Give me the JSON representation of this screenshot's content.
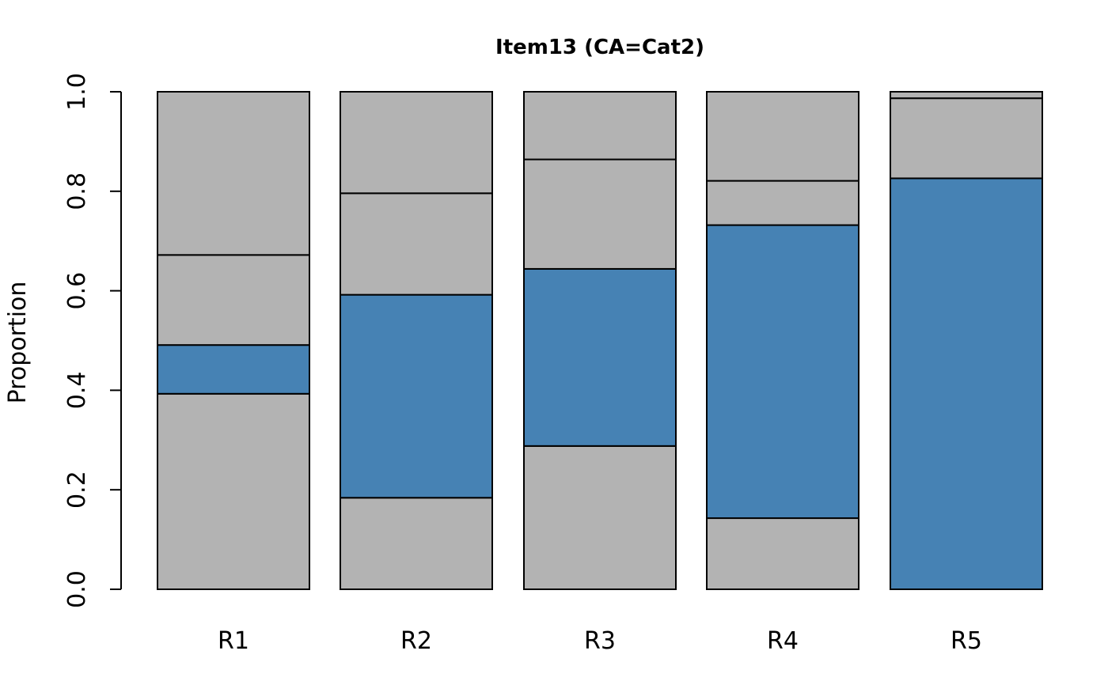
{
  "chart_data": {
    "type": "bar",
    "stacked": true,
    "title": "Item13 (CA=Cat2)",
    "xlabel": "",
    "ylabel": "Proportion",
    "ylim": [
      0,
      1
    ],
    "yticks": [
      "0.0",
      "0.2",
      "0.4",
      "0.6",
      "0.8",
      "1.0"
    ],
    "categories": [
      "R1",
      "R2",
      "R3",
      "R4",
      "R5"
    ],
    "series": [
      {
        "values": [
          0.393,
          0.184,
          0.288,
          0.143,
          0.0
        ],
        "color": "#b3b3b3"
      },
      {
        "values": [
          0.098,
          0.408,
          0.356,
          0.589,
          0.826
        ],
        "color": "#4682b4"
      },
      {
        "values": [
          0.181,
          0.204,
          0.22,
          0.089,
          0.161
        ],
        "color": "#b3b3b3"
      },
      {
        "values": [
          0.328,
          0.204,
          0.136,
          0.179,
          0.013
        ],
        "color": "#b3b3b3"
      }
    ],
    "correct_answer_color": "#4682b4",
    "distractor_color": "#b3b3b3",
    "grid": false
  }
}
